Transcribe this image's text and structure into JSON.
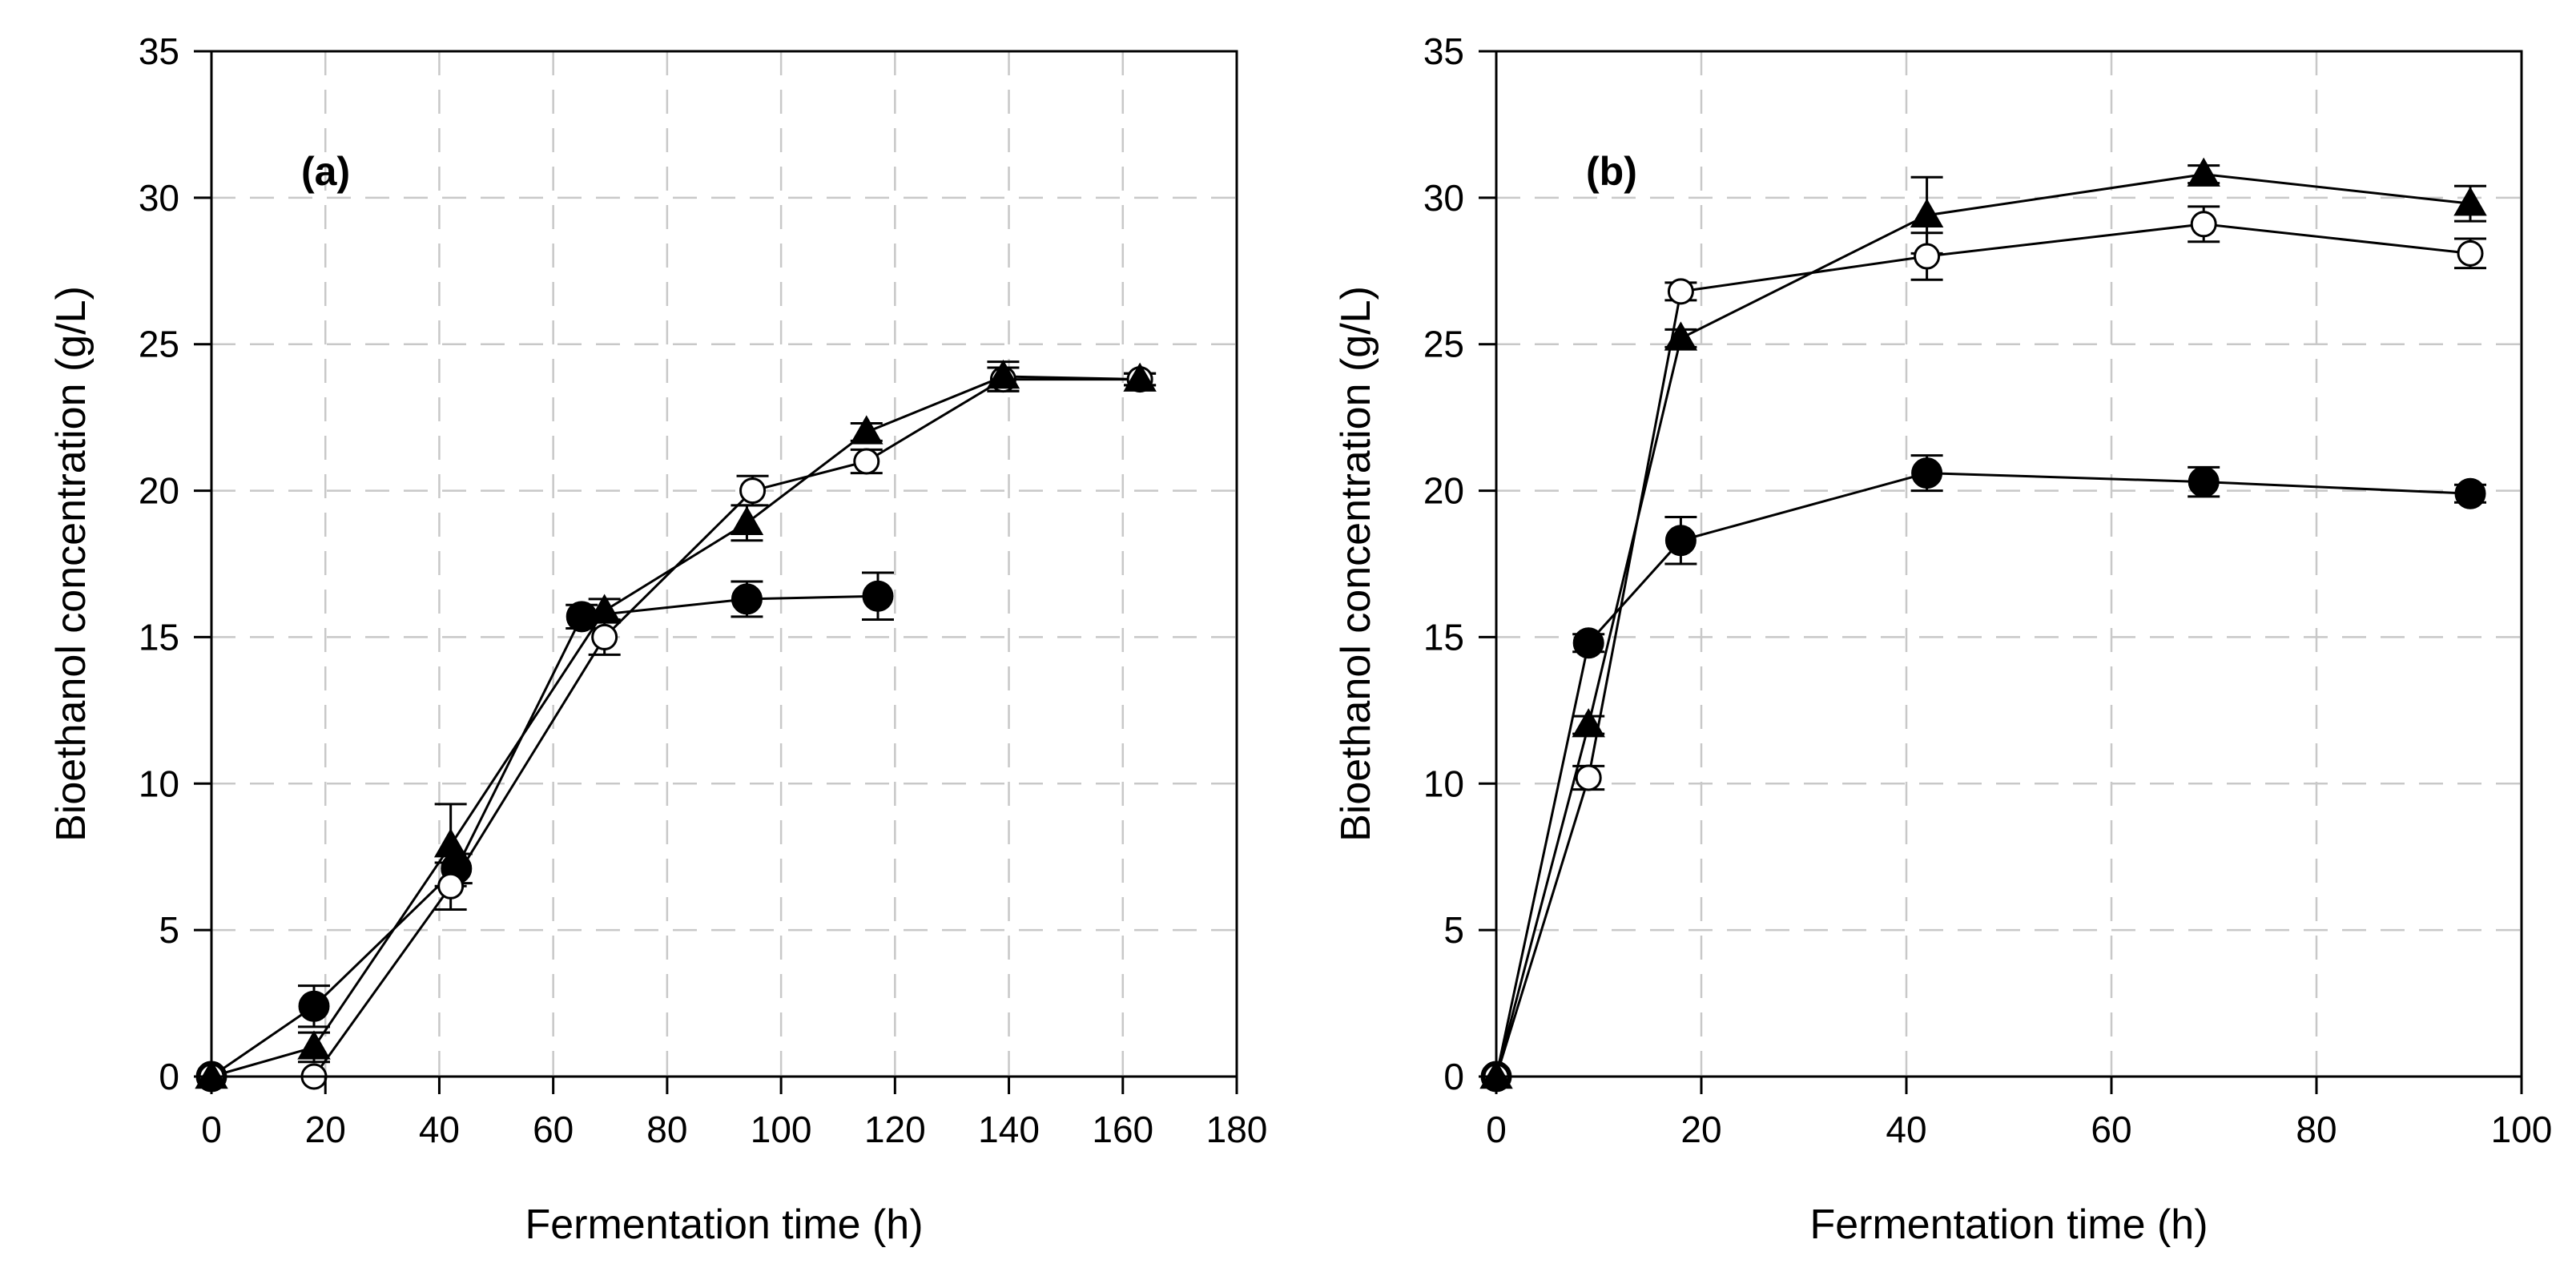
{
  "colors": {
    "axis": "#000000",
    "grid": "#c8c8c8",
    "series_line": "#000000",
    "filled_marker": "#000000",
    "open_marker_fill": "#ffffff"
  },
  "chart_data": [
    {
      "type": "line",
      "panel_label": "(a)",
      "xlabel": "Fermentation time (h)",
      "ylabel": "Bioethanol  concentration (g/L)",
      "xlim": [
        0,
        180
      ],
      "ylim": [
        0,
        35
      ],
      "xticks": [
        "0",
        "20",
        "40",
        "60",
        "80",
        "100",
        "120",
        "140",
        "160",
        "180"
      ],
      "yticks": [
        "0",
        "5",
        "10",
        "15",
        "20",
        "25",
        "30",
        "35"
      ],
      "grid": true,
      "legend": "none",
      "series": [
        {
          "name": "filled circle",
          "marker": "filled-circle",
          "x": [
            0,
            18,
            43,
            65,
            94,
            117
          ],
          "y": [
            0,
            2.4,
            7.1,
            15.7,
            16.3,
            16.4
          ],
          "err": [
            0,
            0.7,
            0.5,
            0.4,
            0.6,
            0.8
          ]
        },
        {
          "name": "open circle",
          "marker": "open-circle",
          "x": [
            0,
            18,
            42,
            69,
            95,
            115,
            139,
            163
          ],
          "y": [
            0,
            0,
            6.5,
            15.0,
            20.0,
            21.0,
            23.8,
            23.8
          ],
          "err": [
            0,
            0,
            0.8,
            0.6,
            0.5,
            0.4,
            0.4,
            0.2
          ]
        },
        {
          "name": "filled triangle",
          "marker": "filled-triangle",
          "x": [
            0,
            18,
            42,
            69,
            94,
            115,
            139,
            163
          ],
          "y": [
            0,
            1.0,
            7.9,
            15.9,
            18.9,
            22.0,
            23.9,
            23.8
          ],
          "err": [
            0,
            0.5,
            1.4,
            0.4,
            0.6,
            0.3,
            0.5,
            0.2
          ]
        }
      ]
    },
    {
      "type": "line",
      "panel_label": "(b)",
      "xlabel": "Fermentation time (h)",
      "ylabel": "Bioethanol  concentration (g/L)",
      "xlim": [
        0,
        100
      ],
      "ylim": [
        0,
        35
      ],
      "xticks": [
        "0",
        "20",
        "40",
        "60",
        "80",
        "100"
      ],
      "yticks": [
        "0",
        "5",
        "10",
        "15",
        "20",
        "25",
        "30",
        "35"
      ],
      "grid": true,
      "legend": "none",
      "series": [
        {
          "name": "filled circle",
          "marker": "filled-circle",
          "x": [
            0,
            9,
            18,
            42,
            69,
            95
          ],
          "y": [
            0,
            14.8,
            18.3,
            20.6,
            20.3,
            19.9
          ],
          "err": [
            0,
            0.3,
            0.8,
            0.6,
            0.5,
            0.3
          ]
        },
        {
          "name": "open circle",
          "marker": "open-circle",
          "x": [
            0,
            9,
            18,
            42,
            69,
            95
          ],
          "y": [
            0,
            10.2,
            26.8,
            28.0,
            29.1,
            28.1
          ],
          "err": [
            0,
            0.4,
            0.3,
            0.8,
            0.6,
            0.5
          ]
        },
        {
          "name": "filled triangle",
          "marker": "filled-triangle",
          "x": [
            0,
            9,
            18,
            42,
            69,
            95
          ],
          "y": [
            0,
            12.0,
            25.2,
            29.4,
            30.8,
            29.8
          ],
          "err": [
            0,
            0.3,
            0.3,
            1.3,
            0.3,
            0.6
          ]
        }
      ]
    }
  ]
}
